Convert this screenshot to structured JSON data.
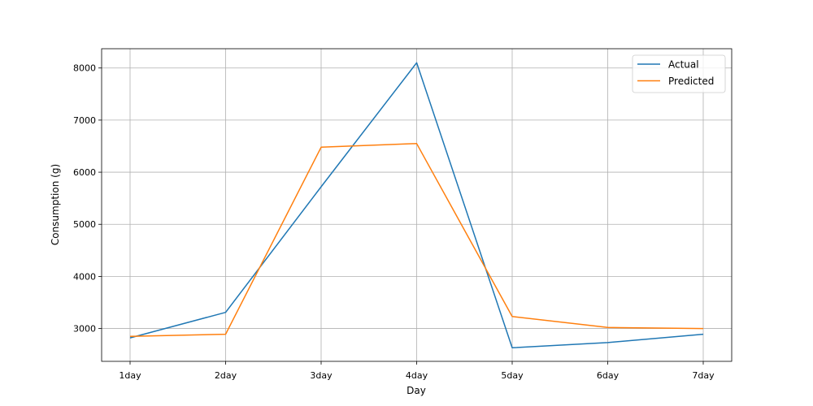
{
  "chart_data": {
    "type": "line",
    "title": "",
    "xlabel": "Day",
    "ylabel": "Consumption (g)",
    "categories": [
      "1day",
      "2day",
      "3day",
      "4day",
      "5day",
      "6day",
      "7day"
    ],
    "series": [
      {
        "name": "Actual",
        "color": "#1f77b4",
        "values": [
          2820,
          3310,
          5720,
          8100,
          2630,
          2730,
          2890
        ]
      },
      {
        "name": "Predicted",
        "color": "#ff7f0e",
        "values": [
          2850,
          2890,
          6480,
          6550,
          3230,
          3020,
          3000
        ]
      }
    ],
    "ylim": [
      2370,
      8370
    ],
    "yticks": [
      3000,
      4000,
      5000,
      6000,
      7000,
      8000
    ],
    "grid": true,
    "legend_position": "top-right"
  }
}
